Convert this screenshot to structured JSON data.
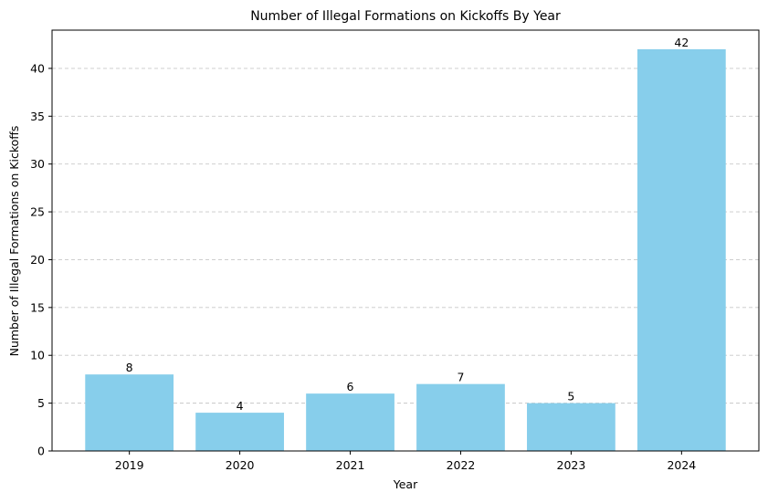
{
  "chart_data": {
    "type": "bar",
    "title": "Number of Illegal Formations on Kickoffs By Year",
    "xlabel": "Year",
    "ylabel": "Number of Illegal Formations on Kickoffs",
    "categories": [
      "2019",
      "2020",
      "2021",
      "2022",
      "2023",
      "2024"
    ],
    "values": [
      8,
      4,
      6,
      7,
      5,
      42
    ],
    "data_labels": [
      "8",
      "4",
      "6",
      "7",
      "5",
      "42"
    ],
    "ylim": [
      0,
      44
    ],
    "yticks": [
      0,
      5,
      10,
      15,
      20,
      25,
      30,
      35,
      40
    ],
    "ytick_labels": [
      "0",
      "5",
      "10",
      "15",
      "20",
      "25",
      "30",
      "35",
      "40"
    ],
    "grid": "y-dashed",
    "legend": "none",
    "colors": {
      "bar": "#87CEEB",
      "grid": "#c8c8c8",
      "axis": "#000000",
      "text": "#000000"
    }
  }
}
